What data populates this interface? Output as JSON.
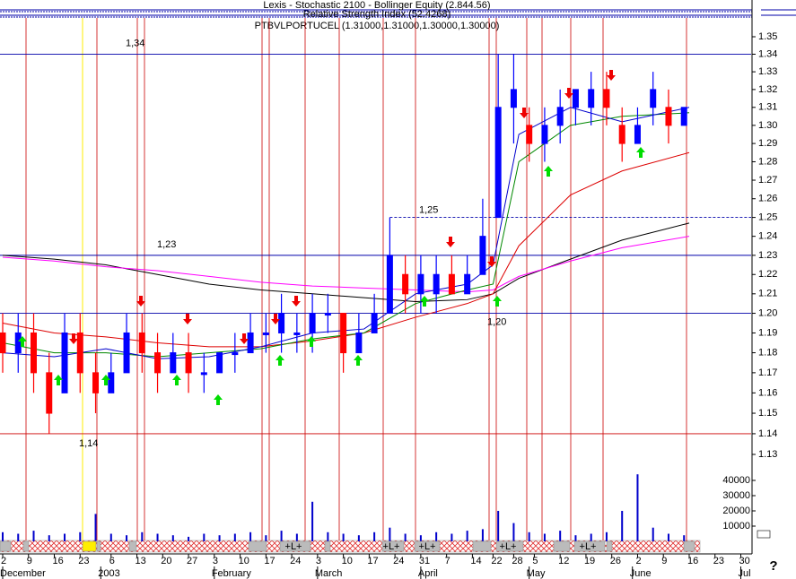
{
  "chart_data": {
    "type": "candlestick",
    "indicators": [
      "Lexis - Stochastic 2100 - Bollinger Equity (2.844.56)",
      "Relative Strength Index (52.4268)"
    ],
    "title": "PTBVLPORTUCEL (1.31000,1.31000,1.30000,1.30000)",
    "x": [
      0,
      3,
      6,
      9,
      12,
      15,
      18,
      21,
      24,
      27,
      30,
      33,
      36,
      39,
      42,
      45,
      48,
      51,
      54,
      57,
      60,
      63,
      66,
      69,
      72,
      75,
      78,
      81,
      84,
      87,
      90,
      93,
      96,
      99,
      102,
      105,
      108,
      111,
      114,
      117,
      120,
      123,
      126,
      129,
      132
    ],
    "open": [
      1.19,
      1.18,
      1.19,
      1.17,
      1.16,
      1.19,
      1.17,
      1.16,
      1.17,
      1.19,
      1.18,
      1.17,
      1.18,
      1.17,
      1.17,
      1.18,
      1.18,
      1.19,
      1.19,
      1.19,
      1.19,
      1.2,
      1.2,
      1.18,
      1.19,
      1.2,
      1.22,
      1.21,
      1.21,
      1.22,
      1.21,
      1.22,
      1.25,
      1.31,
      1.3,
      1.29,
      1.3,
      1.31,
      1.31,
      1.32,
      1.3,
      1.29,
      1.31,
      1.31,
      1.3
    ],
    "high": [
      1.2,
      1.2,
      1.2,
      1.18,
      1.2,
      1.2,
      1.18,
      1.18,
      1.2,
      1.2,
      1.19,
      1.19,
      1.19,
      1.18,
      1.18,
      1.19,
      1.2,
      1.2,
      1.21,
      1.2,
      1.21,
      1.21,
      1.2,
      1.2,
      1.21,
      1.25,
      1.23,
      1.23,
      1.23,
      1.23,
      1.23,
      1.26,
      1.34,
      1.34,
      1.31,
      1.31,
      1.32,
      1.32,
      1.33,
      1.33,
      1.31,
      1.31,
      1.33,
      1.32,
      1.31
    ],
    "low": [
      1.17,
      1.17,
      1.16,
      1.14,
      1.16,
      1.16,
      1.15,
      1.16,
      1.17,
      1.17,
      1.16,
      1.17,
      1.16,
      1.16,
      1.17,
      1.17,
      1.18,
      1.18,
      1.18,
      1.18,
      1.18,
      1.19,
      1.17,
      1.18,
      1.19,
      1.2,
      1.2,
      1.2,
      1.2,
      1.21,
      1.21,
      1.22,
      1.25,
      1.29,
      1.28,
      1.28,
      1.29,
      1.3,
      1.3,
      1.3,
      1.28,
      1.29,
      1.3,
      1.29,
      1.3
    ],
    "close": [
      1.18,
      1.19,
      1.17,
      1.15,
      1.19,
      1.17,
      1.16,
      1.17,
      1.19,
      1.18,
      1.17,
      1.18,
      1.17,
      1.17,
      1.18,
      1.18,
      1.19,
      1.19,
      1.2,
      1.19,
      1.2,
      1.2,
      1.18,
      1.19,
      1.2,
      1.23,
      1.21,
      1.22,
      1.22,
      1.21,
      1.22,
      1.24,
      1.31,
      1.32,
      1.29,
      1.3,
      1.31,
      1.32,
      1.32,
      1.31,
      1.29,
      1.3,
      1.32,
      1.3,
      1.31
    ],
    "up_color": "#0000ff",
    "down_color": "#ff0000",
    "xlim": [
      0,
      145
    ],
    "xticks": [
      {
        "value": 0,
        "label": "2"
      },
      {
        "value": 5,
        "label": "9"
      },
      {
        "value": 10,
        "label": "16"
      },
      {
        "value": 15,
        "label": "23"
      },
      {
        "value": 21,
        "label": "6"
      },
      {
        "value": 26,
        "label": "13"
      },
      {
        "value": 31,
        "label": "20"
      },
      {
        "value": 36,
        "label": "27"
      },
      {
        "value": 41,
        "label": "3"
      },
      {
        "value": 46,
        "label": "10"
      },
      {
        "value": 51,
        "label": "17"
      },
      {
        "value": 56,
        "label": "24"
      },
      {
        "value": 61,
        "label": "3"
      },
      {
        "value": 66,
        "label": "10"
      },
      {
        "value": 71,
        "label": "17"
      },
      {
        "value": 76,
        "label": "24"
      },
      {
        "value": 81,
        "label": "31"
      },
      {
        "value": 86,
        "label": "7"
      },
      {
        "value": 91,
        "label": "14"
      },
      {
        "value": 95,
        "label": "22"
      },
      {
        "value": 99,
        "label": "28"
      },
      {
        "value": 103,
        "label": "5"
      },
      {
        "value": 108,
        "label": "12"
      },
      {
        "value": 113,
        "label": "19"
      },
      {
        "value": 118,
        "label": "26"
      },
      {
        "value": 123,
        "label": "2"
      },
      {
        "value": 128,
        "label": "9"
      },
      {
        "value": 133,
        "label": "16"
      },
      {
        "value": 138,
        "label": "23"
      },
      {
        "value": 143,
        "label": "30"
      }
    ],
    "month_ticks": [
      {
        "value": 0,
        "label": "December"
      },
      {
        "value": 19,
        "label": "2003"
      },
      {
        "value": 41,
        "label": "February"
      },
      {
        "value": 61,
        "label": "March"
      },
      {
        "value": 81,
        "label": "April"
      },
      {
        "value": 102,
        "label": "May"
      },
      {
        "value": 122,
        "label": "June"
      },
      {
        "value": 143,
        "label": "Jul"
      }
    ],
    "ylim": [
      1.13,
      1.35
    ],
    "log": true,
    "yticks": [
      1.13,
      1.14,
      1.15,
      1.16,
      1.17,
      1.18,
      1.19,
      {
        "value": 1.2,
        "label": "1.20"
      },
      1.21,
      1.22,
      1.23,
      1.24,
      1.25,
      1.26,
      1.27,
      1.28,
      1.29,
      {
        "value": 1.3,
        "label": "1.30"
      },
      1.31,
      1.32,
      1.33,
      1.34,
      1.35
    ],
    "moving_averages": {
      "x": [
        0,
        10,
        20,
        30,
        40,
        50,
        60,
        70,
        80,
        90,
        95,
        100,
        110,
        120,
        133
      ],
      "series": [
        {
          "color": "#000000",
          "values": [
            1.23,
            1.228,
            1.225,
            1.22,
            1.215,
            1.212,
            1.21,
            1.208,
            1.206,
            1.207,
            1.21,
            1.218,
            1.228,
            1.238,
            1.247
          ]
        },
        {
          "color": "#ff00ff",
          "values": [
            1.229,
            1.227,
            1.224,
            1.222,
            1.219,
            1.216,
            1.214,
            1.213,
            1.212,
            1.211,
            1.212,
            1.219,
            1.227,
            1.234,
            1.24
          ]
        },
        {
          "color": "#dd0000",
          "values": [
            1.195,
            1.19,
            1.188,
            1.185,
            1.183,
            1.183,
            1.186,
            1.19,
            1.198,
            1.205,
            1.21,
            1.235,
            1.262,
            1.275,
            1.285
          ]
        },
        {
          "color": "#008800",
          "values": [
            1.185,
            1.18,
            1.18,
            1.178,
            1.18,
            1.182,
            1.187,
            1.19,
            1.205,
            1.212,
            1.215,
            1.28,
            1.3,
            1.305,
            1.307
          ]
        },
        {
          "color": "#0000cc",
          "values": [
            1.18,
            1.178,
            1.182,
            1.177,
            1.178,
            1.183,
            1.19,
            1.192,
            1.21,
            1.215,
            1.225,
            1.295,
            1.31,
            1.302,
            1.31
          ]
        }
      ]
    },
    "levels": [
      {
        "value": 1.34,
        "label": "1,34",
        "color": "#0000aa",
        "from": 0
      },
      {
        "value": 1.23,
        "label": "1,23",
        "color": "#0000aa",
        "from": 0
      },
      {
        "value": 1.2,
        "label": "1,20",
        "color": "#0000aa",
        "from": 0
      },
      {
        "value": 1.14,
        "label": "1,14",
        "color": "#cc0000",
        "from": 0
      },
      {
        "value": 1.25,
        "label": "1,25",
        "color": "#0000aa",
        "from": 75,
        "dashed": true
      }
    ],
    "volume": {
      "color": "#0000cc",
      "values": [
        6000,
        5000,
        7000,
        4000,
        5000,
        6000,
        18000,
        5000,
        4000,
        6000,
        5000,
        4000,
        3000,
        5000,
        4000,
        5000,
        6000,
        4000,
        7000,
        5000,
        26000,
        6000,
        5000,
        4000,
        6000,
        9000,
        5000,
        4000,
        6000,
        5000,
        7000,
        8000,
        20000,
        12000,
        6000,
        5000,
        7000,
        4000,
        5000,
        6000,
        20000,
        44000,
        9000,
        5000,
        4000
      ],
      "ylim": [
        0,
        45000
      ],
      "yticks": [
        10000,
        20000,
        30000,
        40000
      ]
    },
    "status_labels": [
      "+L+",
      "+L+",
      "+L+",
      "+L+",
      "+L+"
    ],
    "help": "?"
  }
}
